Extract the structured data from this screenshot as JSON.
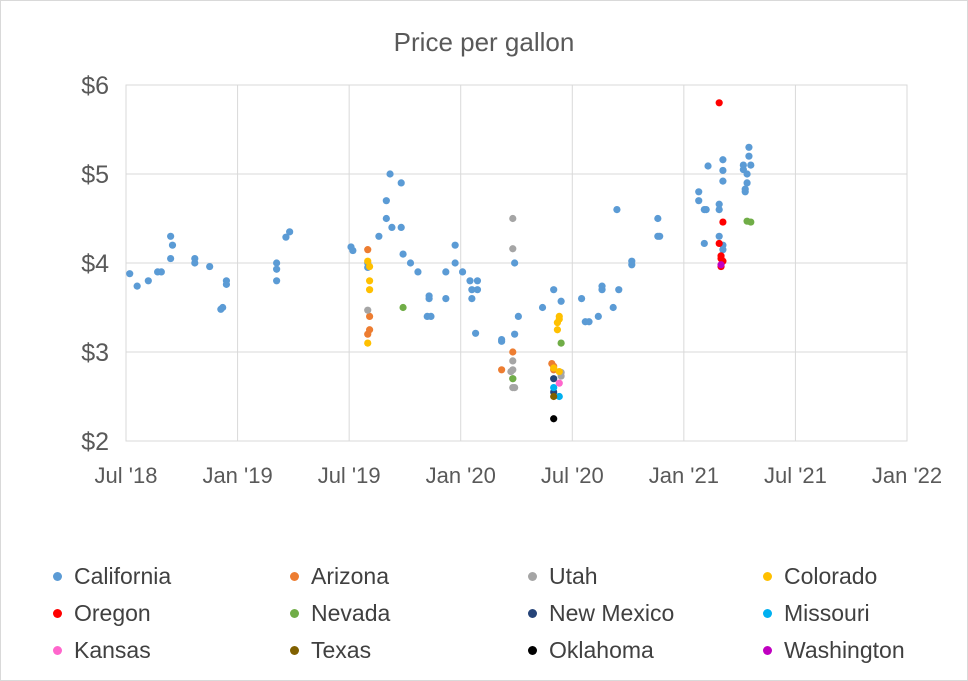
{
  "chart_data": {
    "type": "scatter",
    "title": "Price per gallon",
    "xlabel": "",
    "ylabel": "",
    "x_unit": "months since Jul 2018",
    "xlim": [
      0,
      42
    ],
    "ylim": [
      2,
      6
    ],
    "xticks": [
      {
        "value": 0,
        "label": "Jul '18"
      },
      {
        "value": 6,
        "label": "Jan '19"
      },
      {
        "value": 12,
        "label": "Jul '19"
      },
      {
        "value": 18,
        "label": "Jan '20"
      },
      {
        "value": 24,
        "label": "Jul '20"
      },
      {
        "value": 30,
        "label": "Jan '21"
      },
      {
        "value": 36,
        "label": "Jul '21"
      },
      {
        "value": 42,
        "label": "Jan '22"
      }
    ],
    "yticks": [
      {
        "value": 2,
        "label": "$2"
      },
      {
        "value": 3,
        "label": "$3"
      },
      {
        "value": 4,
        "label": "$4"
      },
      {
        "value": 5,
        "label": "$5"
      },
      {
        "value": 6,
        "label": "$6"
      }
    ],
    "grid": true,
    "legend_position": "bottom",
    "series": [
      {
        "name": "California",
        "color": "#5b9bd5",
        "points": [
          [
            0.2,
            3.88
          ],
          [
            0.6,
            3.74
          ],
          [
            1.2,
            3.8
          ],
          [
            1.7,
            3.9
          ],
          [
            1.9,
            3.9
          ],
          [
            2.4,
            4.05
          ],
          [
            2.4,
            4.3
          ],
          [
            2.5,
            4.2
          ],
          [
            3.7,
            4.05
          ],
          [
            3.7,
            4.0
          ],
          [
            4.5,
            3.96
          ],
          [
            5.1,
            3.48
          ],
          [
            5.2,
            3.5
          ],
          [
            5.4,
            3.8
          ],
          [
            5.4,
            3.76
          ],
          [
            8.1,
            4.0
          ],
          [
            8.1,
            3.93
          ],
          [
            8.1,
            3.8
          ],
          [
            8.6,
            4.29
          ],
          [
            8.8,
            4.35
          ],
          [
            12.1,
            4.18
          ],
          [
            12.2,
            4.14
          ],
          [
            13.0,
            4.0
          ],
          [
            13.0,
            3.95
          ],
          [
            13.6,
            4.3
          ],
          [
            14.0,
            4.5
          ],
          [
            14.0,
            4.7
          ],
          [
            14.2,
            5.0
          ],
          [
            14.3,
            4.4
          ],
          [
            14.8,
            4.9
          ],
          [
            14.8,
            4.4
          ],
          [
            14.9,
            4.1
          ],
          [
            15.3,
            4.0
          ],
          [
            15.7,
            3.9
          ],
          [
            16.2,
            3.4
          ],
          [
            16.3,
            3.6
          ],
          [
            16.3,
            3.63
          ],
          [
            16.4,
            3.4
          ],
          [
            17.2,
            3.6
          ],
          [
            17.2,
            3.9
          ],
          [
            17.7,
            4.2
          ],
          [
            17.7,
            4.0
          ],
          [
            18.1,
            3.9
          ],
          [
            18.5,
            3.8
          ],
          [
            18.6,
            3.6
          ],
          [
            18.6,
            3.7
          ],
          [
            18.9,
            3.8
          ],
          [
            18.9,
            3.7
          ],
          [
            18.8,
            3.21
          ],
          [
            20.2,
            3.14
          ],
          [
            20.2,
            3.12
          ],
          [
            20.9,
            3.2
          ],
          [
            20.9,
            4.0
          ],
          [
            21.1,
            3.4
          ],
          [
            22.4,
            3.5
          ],
          [
            23.0,
            3.7
          ],
          [
            23.4,
            3.57
          ],
          [
            24.5,
            3.6
          ],
          [
            24.7,
            3.34
          ],
          [
            24.9,
            3.34
          ],
          [
            25.4,
            3.4
          ],
          [
            25.6,
            3.7
          ],
          [
            25.6,
            3.74
          ],
          [
            26.2,
            3.5
          ],
          [
            26.4,
            4.6
          ],
          [
            26.5,
            3.7
          ],
          [
            27.2,
            3.98
          ],
          [
            27.2,
            4.02
          ],
          [
            28.6,
            4.5
          ],
          [
            28.6,
            4.3
          ],
          [
            28.7,
            4.3
          ],
          [
            30.8,
            4.8
          ],
          [
            30.8,
            4.7
          ],
          [
            31.1,
            4.6
          ],
          [
            31.1,
            4.22
          ],
          [
            31.2,
            4.6
          ],
          [
            31.3,
            5.09
          ],
          [
            31.9,
            4.66
          ],
          [
            31.9,
            4.6
          ],
          [
            31.9,
            4.3
          ],
          [
            32.1,
            5.16
          ],
          [
            32.1,
            5.04
          ],
          [
            32.1,
            4.92
          ],
          [
            32.1,
            4.2
          ],
          [
            32.1,
            4.15
          ],
          [
            33.2,
            5.1
          ],
          [
            33.2,
            5.05
          ],
          [
            33.3,
            4.83
          ],
          [
            33.3,
            4.8
          ],
          [
            33.4,
            5.0
          ],
          [
            33.4,
            4.9
          ],
          [
            33.5,
            5.3
          ],
          [
            33.5,
            5.2
          ],
          [
            33.6,
            5.1
          ]
        ]
      },
      {
        "name": "Arizona",
        "color": "#ed7d31",
        "points": [
          [
            13.0,
            4.15
          ],
          [
            13.0,
            3.2
          ],
          [
            13.1,
            3.4
          ],
          [
            13.1,
            3.25
          ],
          [
            20.2,
            2.8
          ],
          [
            20.8,
            3.0
          ],
          [
            22.9,
            2.87
          ],
          [
            23.0,
            2.84
          ],
          [
            23.0,
            2.8
          ]
        ]
      },
      {
        "name": "Utah",
        "color": "#a5a5a5",
        "points": [
          [
            13.0,
            3.47
          ],
          [
            20.8,
            4.5
          ],
          [
            20.8,
            4.16
          ],
          [
            20.8,
            2.9
          ],
          [
            20.8,
            2.8
          ],
          [
            20.7,
            2.78
          ],
          [
            20.8,
            2.7
          ],
          [
            20.8,
            2.6
          ],
          [
            20.9,
            2.6
          ],
          [
            23.4,
            2.77
          ],
          [
            23.4,
            2.73
          ]
        ]
      },
      {
        "name": "Colorado",
        "color": "#ffc000",
        "points": [
          [
            13.0,
            4.02
          ],
          [
            13.1,
            3.96
          ],
          [
            13.1,
            3.8
          ],
          [
            13.1,
            3.7
          ],
          [
            13.0,
            3.1
          ],
          [
            23.3,
            3.4
          ],
          [
            23.3,
            3.37
          ],
          [
            23.2,
            3.33
          ],
          [
            23.2,
            3.25
          ],
          [
            23.3,
            2.78
          ],
          [
            23.0,
            2.82
          ]
        ]
      },
      {
        "name": "Oregon",
        "color": "#ff0000",
        "points": [
          [
            31.9,
            5.8
          ],
          [
            32.1,
            4.46
          ],
          [
            31.9,
            4.22
          ],
          [
            32.0,
            4.08
          ],
          [
            32.0,
            4.05
          ],
          [
            32.1,
            4.02
          ],
          [
            32.0,
            3.96
          ]
        ]
      },
      {
        "name": "Nevada",
        "color": "#70ad47",
        "points": [
          [
            14.9,
            3.5
          ],
          [
            20.8,
            2.7
          ],
          [
            23.4,
            3.1
          ],
          [
            33.4,
            4.47
          ],
          [
            33.6,
            4.46
          ]
        ]
      },
      {
        "name": "New Mexico",
        "color": "#264478",
        "points": [
          [
            23.0,
            2.7
          ],
          [
            23.0,
            2.55
          ]
        ]
      },
      {
        "name": "Missouri",
        "color": "#00b0f0",
        "points": [
          [
            23.0,
            2.6
          ],
          [
            23.3,
            2.5
          ]
        ]
      },
      {
        "name": "Kansas",
        "color": "#ff66cc",
        "points": [
          [
            23.3,
            2.65
          ]
        ]
      },
      {
        "name": "Texas",
        "color": "#806000",
        "points": [
          [
            23.0,
            2.5
          ]
        ]
      },
      {
        "name": "Oklahoma",
        "color": "#000000",
        "points": [
          [
            23.0,
            2.25
          ]
        ]
      },
      {
        "name": "Washington",
        "color": "#c000c0",
        "points": [
          [
            32.0,
            3.98
          ]
        ]
      }
    ]
  }
}
